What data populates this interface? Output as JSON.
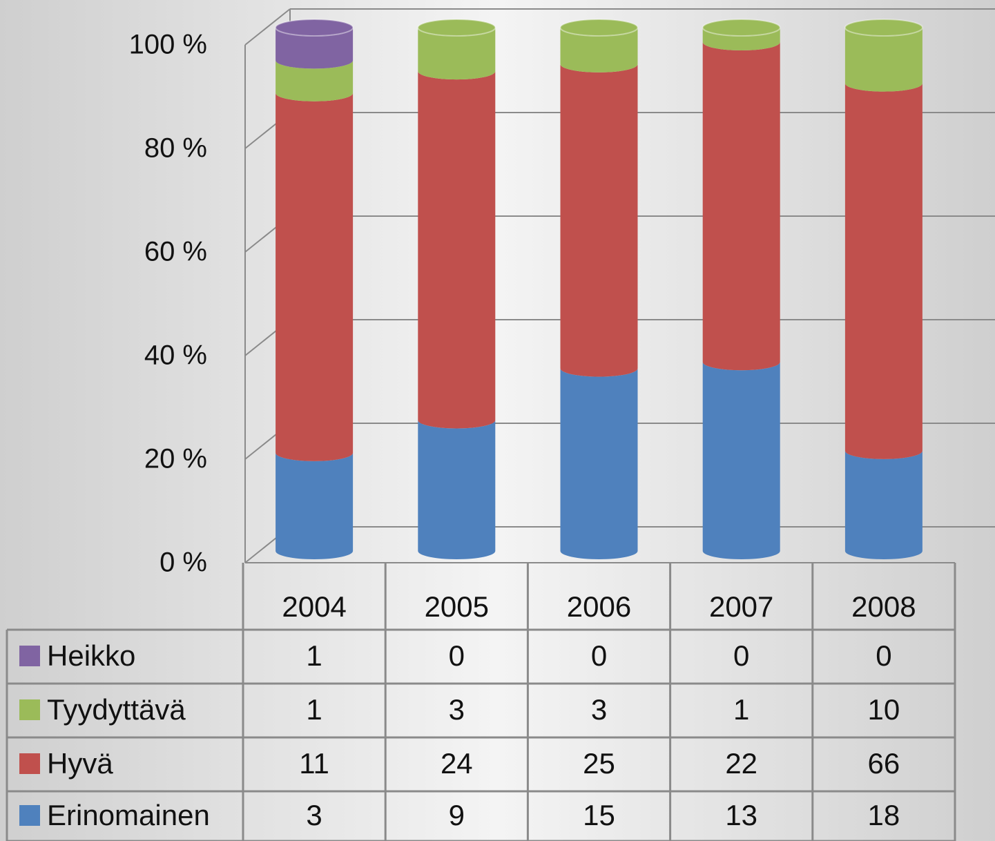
{
  "chart_data": {
    "type": "cylinder",
    "percent": true,
    "categories": [
      "2004",
      "2005",
      "2006",
      "2007",
      "2008"
    ],
    "series": [
      {
        "name": "Heikko",
        "color": "#8064a2",
        "values": [
          1,
          0,
          0,
          0,
          0
        ]
      },
      {
        "name": "Tyydyttävä",
        "color": "#9bbb59",
        "values": [
          1,
          3,
          3,
          1,
          10
        ]
      },
      {
        "name": "Hyvä",
        "color": "#c0504d",
        "values": [
          11,
          24,
          25,
          22,
          66
        ]
      },
      {
        "name": "Erinomainen",
        "color": "#4f81bd",
        "values": [
          3,
          9,
          15,
          13,
          18
        ]
      }
    ],
    "ylim": [
      0,
      100
    ],
    "yticks": [
      {
        "value": 0,
        "label": "0 %"
      },
      {
        "value": 20,
        "label": "20 %"
      },
      {
        "value": 40,
        "label": "40 %"
      },
      {
        "value": 60,
        "label": "60 %"
      },
      {
        "value": 80,
        "label": "80 %"
      },
      {
        "value": 100,
        "label": "100 %"
      }
    ],
    "grid": true
  }
}
